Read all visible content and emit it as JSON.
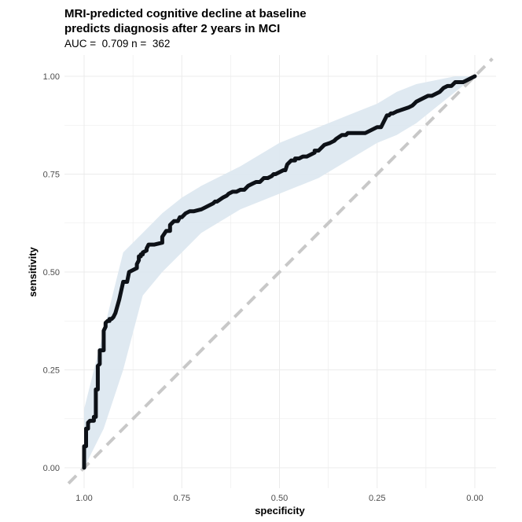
{
  "chart_data": {
    "type": "line",
    "title_line1": "MRI-predicted cognitive decline at baseline",
    "title_line2": "predicts diagnosis after 2 years in MCI",
    "subtitle": "AUC =  0.709 n =  362",
    "xlabel": "specificity",
    "ylabel": "sensitivity",
    "xlim": [
      1.0,
      0.0
    ],
    "x_reversed": true,
    "ylim": [
      0.0,
      1.0
    ],
    "x_ticks": [
      1.0,
      0.75,
      0.5,
      0.25,
      0.0
    ],
    "x_tick_labels": [
      "1.00",
      "0.75",
      "0.50",
      "0.25",
      "0.00"
    ],
    "y_ticks": [
      0.0,
      0.25,
      0.5,
      0.75,
      1.0
    ],
    "y_tick_labels": [
      "0.00",
      "0.25",
      "0.50",
      "0.75",
      "1.00"
    ],
    "grid": true,
    "legend": "none",
    "colors": {
      "roc": "#0d1117",
      "ci_band": "#dde8f0",
      "diagonal": "#c8c8c8",
      "grid": "#ebebeb"
    },
    "series": [
      {
        "kind": "roc_curve",
        "specificity": [
          1.0,
          1.0,
          1.0,
          0.995,
          0.995,
          0.99,
          0.99,
          0.985,
          0.975,
          0.975,
          0.97,
          0.97,
          0.965,
          0.965,
          0.96,
          0.96,
          0.95,
          0.95,
          0.945,
          0.945,
          0.94,
          0.935,
          0.935,
          0.93,
          0.925,
          0.92,
          0.91,
          0.9,
          0.89,
          0.885,
          0.865,
          0.865,
          0.86,
          0.86,
          0.855,
          0.855,
          0.85,
          0.85,
          0.84,
          0.84,
          0.835,
          0.83,
          0.82,
          0.8,
          0.8,
          0.79,
          0.78,
          0.78,
          0.77,
          0.76,
          0.755,
          0.75,
          0.74,
          0.73,
          0.72,
          0.7,
          0.69,
          0.68,
          0.67,
          0.665,
          0.66,
          0.645,
          0.635,
          0.63,
          0.62,
          0.61,
          0.6,
          0.59,
          0.58,
          0.57,
          0.56,
          0.55,
          0.54,
          0.53,
          0.52,
          0.515,
          0.51,
          0.49,
          0.485,
          0.48,
          0.47,
          0.46,
          0.46,
          0.45,
          0.44,
          0.43,
          0.41,
          0.41,
          0.4,
          0.395,
          0.385,
          0.37,
          0.36,
          0.355,
          0.34,
          0.33,
          0.325,
          0.3,
          0.28,
          0.27,
          0.26,
          0.25,
          0.24,
          0.235,
          0.23,
          0.225,
          0.22,
          0.215,
          0.21,
          0.2,
          0.2,
          0.185,
          0.17,
          0.16,
          0.155,
          0.15,
          0.14,
          0.13,
          0.12,
          0.11,
          0.1,
          0.09,
          0.08,
          0.07,
          0.06,
          0.05,
          0.04,
          0.03,
          0.02,
          0.01,
          0.0
        ],
        "sensitivity": [
          0.0,
          0.03,
          0.055,
          0.055,
          0.1,
          0.1,
          0.115,
          0.12,
          0.12,
          0.13,
          0.13,
          0.2,
          0.2,
          0.26,
          0.265,
          0.3,
          0.3,
          0.35,
          0.36,
          0.37,
          0.375,
          0.375,
          0.38,
          0.38,
          0.385,
          0.395,
          0.43,
          0.475,
          0.475,
          0.5,
          0.51,
          0.52,
          0.53,
          0.54,
          0.54,
          0.545,
          0.545,
          0.55,
          0.555,
          0.56,
          0.57,
          0.57,
          0.57,
          0.575,
          0.59,
          0.605,
          0.605,
          0.62,
          0.63,
          0.63,
          0.64,
          0.64,
          0.65,
          0.655,
          0.655,
          0.66,
          0.665,
          0.67,
          0.675,
          0.68,
          0.68,
          0.69,
          0.695,
          0.7,
          0.705,
          0.705,
          0.71,
          0.71,
          0.72,
          0.725,
          0.73,
          0.73,
          0.74,
          0.74,
          0.745,
          0.75,
          0.75,
          0.76,
          0.76,
          0.775,
          0.785,
          0.785,
          0.79,
          0.79,
          0.795,
          0.795,
          0.805,
          0.81,
          0.81,
          0.815,
          0.825,
          0.83,
          0.835,
          0.84,
          0.85,
          0.85,
          0.855,
          0.855,
          0.855,
          0.86,
          0.865,
          0.87,
          0.87,
          0.88,
          0.89,
          0.9,
          0.9,
          0.905,
          0.905,
          0.91,
          0.91,
          0.915,
          0.92,
          0.925,
          0.93,
          0.935,
          0.94,
          0.945,
          0.95,
          0.95,
          0.955,
          0.96,
          0.97,
          0.975,
          0.975,
          0.985,
          0.985,
          0.985,
          0.99,
          0.995,
          1.0
        ]
      },
      {
        "kind": "ci_band",
        "specificity": [
          1.0,
          0.95,
          0.9,
          0.85,
          0.8,
          0.75,
          0.7,
          0.6,
          0.5,
          0.4,
          0.3,
          0.25,
          0.2,
          0.15,
          0.1,
          0.05,
          0.0
        ],
        "lower": [
          0.0,
          0.1,
          0.25,
          0.44,
          0.5,
          0.55,
          0.6,
          0.66,
          0.7,
          0.74,
          0.8,
          0.83,
          0.85,
          0.88,
          0.92,
          0.96,
          1.0
        ],
        "upper": [
          0.15,
          0.35,
          0.55,
          0.6,
          0.65,
          0.69,
          0.72,
          0.77,
          0.83,
          0.87,
          0.91,
          0.93,
          0.96,
          0.98,
          0.99,
          1.0,
          1.0
        ]
      },
      {
        "kind": "reference_diagonal",
        "specificity": [
          1.04,
          -0.045
        ],
        "sensitivity": [
          -0.04,
          1.045
        ]
      }
    ]
  }
}
